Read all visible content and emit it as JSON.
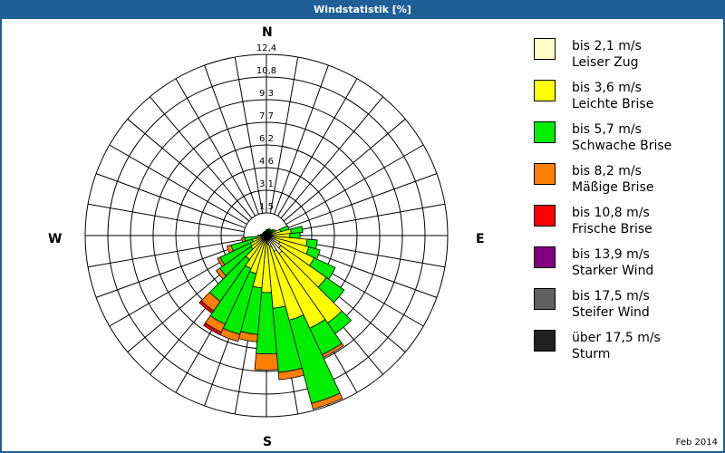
{
  "title": "Windstatistik [%]",
  "date_label": "Feb 2014",
  "compass": {
    "n": "N",
    "e": "E",
    "s": "S",
    "w": "W"
  },
  "ring_labels": [
    "1,5",
    "3,1",
    "4,6",
    "6,2",
    "7,7",
    "9,3",
    "10,8",
    "12,4"
  ],
  "legend": [
    {
      "range": "bis 2,1 m/s",
      "name": "Leiser Zug",
      "color": "#ffffc8"
    },
    {
      "range": "bis 3,6 m/s",
      "name": "Leichte Brise",
      "color": "#ffff00"
    },
    {
      "range": "bis 5,7 m/s",
      "name": "Schwache Brise",
      "color": "#00ee00"
    },
    {
      "range": "bis 8,2 m/s",
      "name": "Mäßige Brise",
      "color": "#ff8000"
    },
    {
      "range": "bis 10,8 m/s",
      "name": "Frische Brise",
      "color": "#ff0000"
    },
    {
      "range": "bis 13,9 m/s",
      "name": "Starker Wind",
      "color": "#800080"
    },
    {
      "range": "bis 17,5 m/s",
      "name": "Steifer Wind",
      "color": "#606060"
    },
    {
      "range": "über 17,5 m/s",
      "name": "Sturm",
      "color": "#202020"
    }
  ],
  "chart_data": {
    "type": "windrose",
    "title": "Windstatistik [%]",
    "subtitle": "Feb 2014",
    "radial_max": 12.4,
    "radial_ticks": [
      1.55,
      3.1,
      4.65,
      6.2,
      7.75,
      9.3,
      10.85,
      12.4
    ],
    "radial_tick_labels": [
      "1,5",
      "3,1",
      "4,6",
      "6,2",
      "7,7",
      "9,3",
      "10,8",
      "12,4"
    ],
    "direction_step_deg": 10,
    "classes": [
      "bis 2,1 m/s",
      "bis 3,6 m/s",
      "bis 5,7 m/s",
      "bis 8,2 m/s",
      "bis 10,8 m/s",
      "bis 13,9 m/s",
      "bis 17,5 m/s",
      "über 17,5 m/s"
    ],
    "note": "cumulative % per direction for classes [leiser, leichte, schwache, mäßige, frische]",
    "directions": [
      {
        "deg": 0,
        "cum": [
          0.1,
          0.3,
          0.4,
          0.4,
          0.4
        ]
      },
      {
        "deg": 10,
        "cum": [
          0.1,
          0.3,
          0.4,
          0.4,
          0.4
        ]
      },
      {
        "deg": 20,
        "cum": [
          0.1,
          0.3,
          0.5,
          0.5,
          0.5
        ]
      },
      {
        "deg": 30,
        "cum": [
          0.1,
          0.3,
          0.5,
          0.5,
          0.5
        ]
      },
      {
        "deg": 40,
        "cum": [
          0.1,
          0.3,
          0.5,
          0.5,
          0.5
        ]
      },
      {
        "deg": 50,
        "cum": [
          0.1,
          0.4,
          0.6,
          0.6,
          0.6
        ]
      },
      {
        "deg": 60,
        "cum": [
          0.1,
          0.4,
          0.7,
          0.7,
          0.7
        ]
      },
      {
        "deg": 70,
        "cum": [
          0.2,
          1.0,
          1.6,
          1.6,
          1.6
        ]
      },
      {
        "deg": 80,
        "cum": [
          0.2,
          1.7,
          2.5,
          2.5,
          2.5
        ]
      },
      {
        "deg": 90,
        "cum": [
          0.3,
          1.6,
          2.3,
          2.3,
          2.3
        ]
      },
      {
        "deg": 100,
        "cum": [
          0.4,
          2.8,
          3.5,
          3.5,
          3.5
        ]
      },
      {
        "deg": 110,
        "cum": [
          0.6,
          3.0,
          3.8,
          3.8,
          3.8
        ]
      },
      {
        "deg": 120,
        "cum": [
          1.0,
          3.6,
          5.2,
          5.2,
          5.2
        ]
      },
      {
        "deg": 130,
        "cum": [
          1.2,
          5.0,
          6.5,
          6.5,
          6.5
        ]
      },
      {
        "deg": 140,
        "cum": [
          1.5,
          7.3,
          8.2,
          8.2,
          8.2
        ]
      },
      {
        "deg": 150,
        "cum": [
          1.2,
          7.0,
          9.0,
          9.2,
          9.2
        ]
      },
      {
        "deg": 160,
        "cum": [
          0.8,
          6.0,
          11.9,
          12.3,
          12.3
        ]
      },
      {
        "deg": 170,
        "cum": [
          0.6,
          5.0,
          9.4,
          9.9,
          9.9
        ]
      },
      {
        "deg": 180,
        "cum": [
          0.5,
          3.9,
          8.1,
          9.2,
          9.2
        ]
      },
      {
        "deg": 190,
        "cum": [
          0.4,
          3.6,
          6.8,
          7.3,
          7.3
        ]
      },
      {
        "deg": 200,
        "cum": [
          0.4,
          2.7,
          7.0,
          7.5,
          7.5
        ]
      },
      {
        "deg": 210,
        "cum": [
          0.3,
          2.5,
          6.7,
          7.3,
          7.5
        ]
      },
      {
        "deg": 220,
        "cum": [
          0.3,
          2.0,
          5.5,
          6.3,
          6.5
        ]
      },
      {
        "deg": 230,
        "cum": [
          0.2,
          1.3,
          3.9,
          4.2,
          4.2
        ]
      },
      {
        "deg": 240,
        "cum": [
          0.2,
          1.2,
          3.5,
          3.7,
          3.7
        ]
      },
      {
        "deg": 250,
        "cum": [
          0.2,
          1.0,
          2.5,
          2.8,
          2.8
        ]
      },
      {
        "deg": 260,
        "cum": [
          0.1,
          0.7,
          1.5,
          1.7,
          1.7
        ]
      },
      {
        "deg": 270,
        "cum": [
          0.1,
          0.3,
          0.6,
          0.6,
          0.6
        ]
      },
      {
        "deg": 280,
        "cum": [
          0.1,
          0.2,
          0.4,
          0.4,
          0.4
        ]
      },
      {
        "deg": 290,
        "cum": [
          0.1,
          0.2,
          0.3,
          0.3,
          0.3
        ]
      },
      {
        "deg": 300,
        "cum": [
          0.1,
          0.2,
          0.3,
          0.3,
          0.3
        ]
      },
      {
        "deg": 310,
        "cum": [
          0.1,
          0.2,
          0.3,
          0.3,
          0.3
        ]
      },
      {
        "deg": 320,
        "cum": [
          0.1,
          0.2,
          0.3,
          0.3,
          0.3
        ]
      },
      {
        "deg": 330,
        "cum": [
          0.1,
          0.2,
          0.3,
          0.3,
          0.3
        ]
      },
      {
        "deg": 340,
        "cum": [
          0.1,
          0.2,
          0.3,
          0.3,
          0.3
        ]
      },
      {
        "deg": 350,
        "cum": [
          0.1,
          0.2,
          0.3,
          0.3,
          0.3
        ]
      }
    ],
    "legend_position": "right",
    "grid": true
  }
}
